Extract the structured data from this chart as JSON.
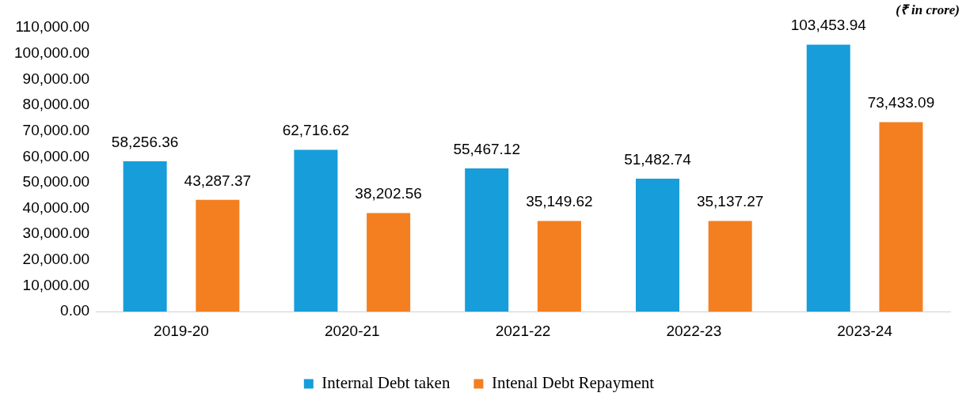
{
  "chart_data": {
    "type": "bar",
    "categories": [
      "2019-20",
      "2020-21",
      "2021-22",
      "2022-23",
      "2023-24"
    ],
    "series": [
      {
        "name": "Internal Debt taken",
        "color": "#179dd9",
        "values": [
          58256.36,
          62716.62,
          55467.12,
          51482.74,
          103453.94
        ],
        "value_labels": [
          "58,256.36",
          "62,716.62",
          "55,467.12",
          "51,482.74",
          "103,453.94"
        ]
      },
      {
        "name": "Intenal Debt Repayment",
        "color": "#f47f20",
        "values": [
          43287.37,
          38202.56,
          35149.62,
          35137.27,
          73433.09
        ],
        "value_labels": [
          "43,287.37",
          "38,202.56",
          "35,149.62",
          "35,137.27",
          "73,433.09"
        ]
      }
    ],
    "ylim": [
      0,
      110000
    ],
    "yticks": [
      {
        "value": 0,
        "label": "0.00"
      },
      {
        "value": 10000,
        "label": "10,000.00"
      },
      {
        "value": 20000,
        "label": "20,000.00"
      },
      {
        "value": 30000,
        "label": "30,000.00"
      },
      {
        "value": 40000,
        "label": "40,000.00"
      },
      {
        "value": 50000,
        "label": "50,000.00"
      },
      {
        "value": 60000,
        "label": "60,000.00"
      },
      {
        "value": 70000,
        "label": "70,000.00"
      },
      {
        "value": 80000,
        "label": "80,000.00"
      },
      {
        "value": 90000,
        "label": "90,000.00"
      },
      {
        "value": 100000,
        "label": "100,000.00"
      },
      {
        "value": 110000,
        "label": "110,000.00"
      }
    ],
    "grid": false,
    "legend": "bottom",
    "annotations": [
      "(₹ in crore)"
    ]
  }
}
